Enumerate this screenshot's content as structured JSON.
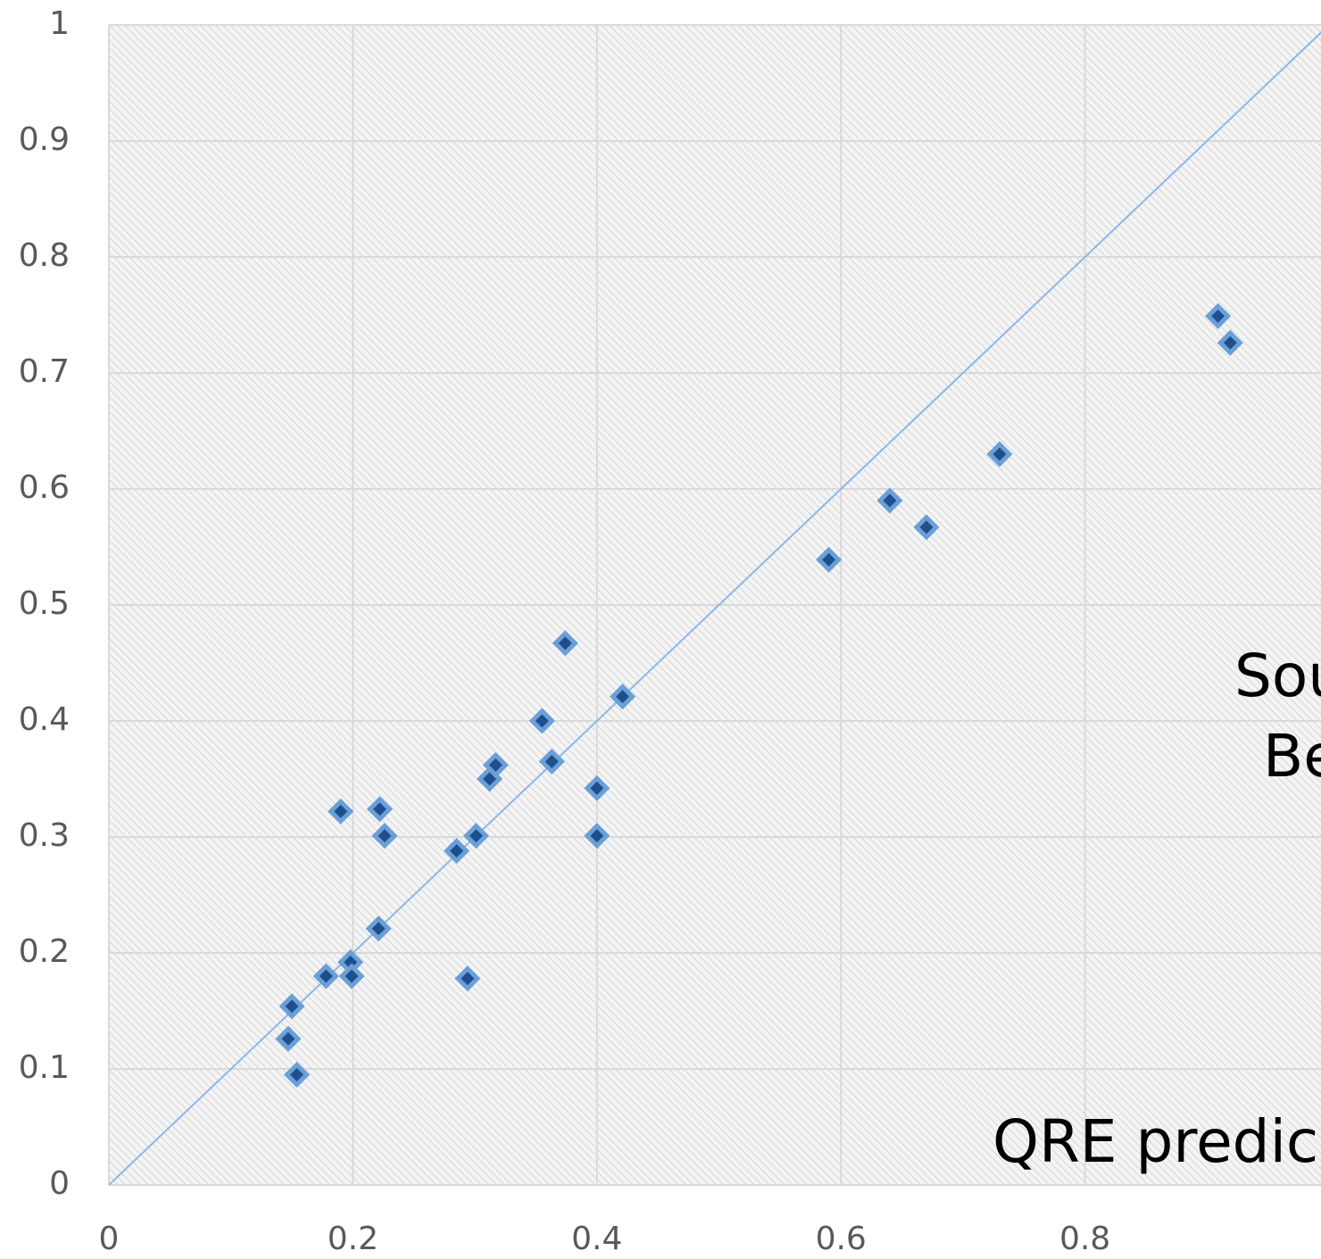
{
  "chart_data": {
    "type": "scatter",
    "x": [
      0.909,
      0.919,
      0.73,
      0.64,
      0.67,
      0.59,
      0.374,
      0.421,
      0.355,
      0.363,
      0.317,
      0.312,
      0.4,
      0.4,
      0.301,
      0.285,
      0.19,
      0.222,
      0.226,
      0.221,
      0.198,
      0.199,
      0.178,
      0.294,
      0.15,
      0.147,
      0.154
    ],
    "values": [
      0.749,
      0.726,
      0.63,
      0.59,
      0.567,
      0.539,
      0.467,
      0.421,
      0.4,
      0.365,
      0.362,
      0.35,
      0.342,
      0.301,
      0.301,
      0.288,
      0.322,
      0.324,
      0.301,
      0.221,
      0.192,
      0.18,
      0.18,
      0.178,
      0.154,
      0.126,
      0.095
    ],
    "color": "#1f4e8c",
    "edge_color": "#6a9fd8",
    "diagonal": true,
    "diagonal_color": "#8db8e6",
    "xlim": [
      0,
      1
    ],
    "ylim": [
      0,
      1
    ],
    "xticks": [
      0,
      0.2,
      0.4,
      0.6,
      0.8
    ],
    "yticks": [
      0,
      0.1,
      0.2,
      0.3,
      0.4,
      0.5,
      0.6,
      0.7,
      0.8,
      0.9,
      1
    ],
    "grid": true,
    "annotations": [
      "Sou",
      "Be",
      "QRE predic"
    ]
  }
}
